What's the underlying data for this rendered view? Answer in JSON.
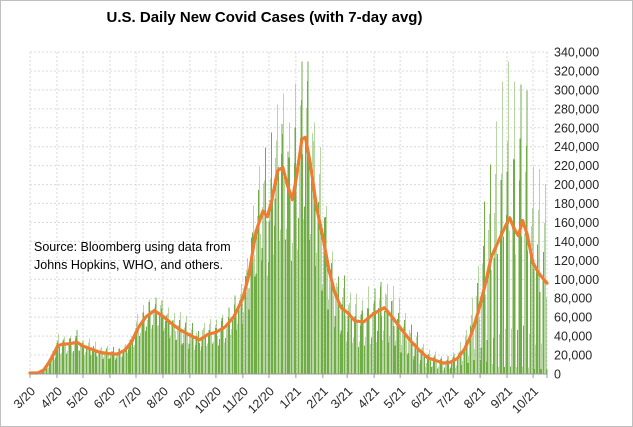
{
  "title": "U.S. Daily New Covid Cases (with 7-day avg)",
  "annotation": {
    "line1": "Source:  Bloomberg using data from",
    "line2": "Johns Hopkins, WHO, and others."
  },
  "chart_data": {
    "type": "bar",
    "subtype": "daily bars with 7-day moving-average line overlay",
    "title": "U.S. Daily New Covid Cases (with 7-day avg)",
    "xlabel": "",
    "ylabel": "",
    "x_axis": {
      "start_date": "2020-03-01",
      "end_date": "2021-10-17",
      "tick_labels": [
        "3/20",
        "4/20",
        "5/20",
        "6/20",
        "7/20",
        "8/20",
        "9/20",
        "10/20",
        "11/20",
        "12/20",
        "1/21",
        "2/21",
        "3/21",
        "4/21",
        "5/21",
        "6/21",
        "7/21",
        "8/21",
        "9/21",
        "10/21"
      ],
      "tick_interval": "month",
      "label_rotation_deg": -45
    },
    "y_axis": {
      "min": 0,
      "max": 340000,
      "step": 20000,
      "side": "right",
      "tick_labels": [
        "0",
        "20,000",
        "40,000",
        "60,000",
        "80,000",
        "100,000",
        "120,000",
        "140,000",
        "160,000",
        "180,000",
        "200,000",
        "220,000",
        "240,000",
        "260,000",
        "280,000",
        "300,000",
        "320,000",
        "340,000"
      ]
    },
    "grid": {
      "visible": true,
      "style": "dashed",
      "color": "#d9d9d9"
    },
    "legend": "none",
    "series": [
      {
        "name": "Daily new cases",
        "type": "bar",
        "color": "#70AD47"
      },
      {
        "name": "7-day average",
        "type": "line",
        "color": "#ED7D31",
        "width": 3.2
      }
    ],
    "avg_anchors": [
      [
        "2020-03-01",
        100
      ],
      [
        "2020-03-10",
        900
      ],
      [
        "2020-03-17",
        4500
      ],
      [
        "2020-03-22",
        11000
      ],
      [
        "2020-03-27",
        19000
      ],
      [
        "2020-04-02",
        30000
      ],
      [
        "2020-04-08",
        31500
      ],
      [
        "2020-04-16",
        32000
      ],
      [
        "2020-04-24",
        33500
      ],
      [
        "2020-05-01",
        29500
      ],
      [
        "2020-05-10",
        26500
      ],
      [
        "2020-05-20",
        23000
      ],
      [
        "2020-05-30",
        21500
      ],
      [
        "2020-06-09",
        21000
      ],
      [
        "2020-06-18",
        25000
      ],
      [
        "2020-06-26",
        34000
      ],
      [
        "2020-07-03",
        48000
      ],
      [
        "2020-07-12",
        60000
      ],
      [
        "2020-07-22",
        67000
      ],
      [
        "2020-08-01",
        61000
      ],
      [
        "2020-08-10",
        54000
      ],
      [
        "2020-08-20",
        47000
      ],
      [
        "2020-09-01",
        41000
      ],
      [
        "2020-09-12",
        36000
      ],
      [
        "2020-09-22",
        42000
      ],
      [
        "2020-10-01",
        44000
      ],
      [
        "2020-10-12",
        50000
      ],
      [
        "2020-10-22",
        61000
      ],
      [
        "2020-11-01",
        80000
      ],
      [
        "2020-11-08",
        105000
      ],
      [
        "2020-11-16",
        150000
      ],
      [
        "2020-11-24",
        172000
      ],
      [
        "2020-11-29",
        166000
      ],
      [
        "2020-12-04",
        182000
      ],
      [
        "2020-12-11",
        215000
      ],
      [
        "2020-12-17",
        218000
      ],
      [
        "2020-12-22",
        200000
      ],
      [
        "2020-12-28",
        184000
      ],
      [
        "2021-01-02",
        210000
      ],
      [
        "2021-01-08",
        248000
      ],
      [
        "2021-01-12",
        250000
      ],
      [
        "2021-01-18",
        220000
      ],
      [
        "2021-01-25",
        175000
      ],
      [
        "2021-02-01",
        145000
      ],
      [
        "2021-02-08",
        110000
      ],
      [
        "2021-02-15",
        85000
      ],
      [
        "2021-02-22",
        70000
      ],
      [
        "2021-03-01",
        65000
      ],
      [
        "2021-03-10",
        56000
      ],
      [
        "2021-03-20",
        55000
      ],
      [
        "2021-04-01",
        64000
      ],
      [
        "2021-04-13",
        70000
      ],
      [
        "2021-04-22",
        60000
      ],
      [
        "2021-05-01",
        49000
      ],
      [
        "2021-05-12",
        36000
      ],
      [
        "2021-05-22",
        26000
      ],
      [
        "2021-06-01",
        17500
      ],
      [
        "2021-06-10",
        14500
      ],
      [
        "2021-06-20",
        11500
      ],
      [
        "2021-06-28",
        12500
      ],
      [
        "2021-07-06",
        16500
      ],
      [
        "2021-07-14",
        26000
      ],
      [
        "2021-07-22",
        42000
      ],
      [
        "2021-07-30",
        66000
      ],
      [
        "2021-08-07",
        95000
      ],
      [
        "2021-08-14",
        124000
      ],
      [
        "2021-08-22",
        140000
      ],
      [
        "2021-08-28",
        152000
      ],
      [
        "2021-09-04",
        165000
      ],
      [
        "2021-09-10",
        152000
      ],
      [
        "2021-09-14",
        146000
      ],
      [
        "2021-09-19",
        162000
      ],
      [
        "2021-09-24",
        148000
      ],
      [
        "2021-10-01",
        117000
      ],
      [
        "2021-10-08",
        106000
      ],
      [
        "2021-10-14",
        99000
      ],
      [
        "2021-10-17",
        96000
      ]
    ],
    "bar_weekly_spike_amplitude_anchors": [
      [
        "2020-03-01",
        0.4
      ],
      [
        "2020-04-15",
        0.3
      ],
      [
        "2020-06-01",
        0.28
      ],
      [
        "2020-07-15",
        0.22
      ],
      [
        "2020-09-01",
        0.35
      ],
      [
        "2020-10-15",
        0.3
      ],
      [
        "2020-12-01",
        0.36
      ],
      [
        "2021-01-10",
        0.4
      ],
      [
        "2021-02-15",
        0.45
      ],
      [
        "2021-04-01",
        0.5
      ],
      [
        "2021-05-15",
        0.55
      ],
      [
        "2021-06-15",
        0.6
      ],
      [
        "2021-07-15",
        0.65
      ],
      [
        "2021-08-05",
        0.9
      ],
      [
        "2021-08-20",
        1.0
      ],
      [
        "2021-10-17",
        1.0
      ]
    ],
    "weekly_pattern_sun_to_sat": [
      -0.95,
      -0.7,
      0.0,
      0.35,
      0.55,
      1.0,
      -0.1
    ],
    "bar_noise_fraction": 0.16,
    "bar_value_clamp_max": 330000,
    "peak_notes": {
      "apr_2020_plateau_avg": 32000,
      "jul_2020_peak_avg": 67000,
      "dec_2020_peak_avg": 218000,
      "jan_2021_peak_avg": 250000,
      "jun_2021_min_avg": 11500,
      "sep_2021_peak_avg": 165000,
      "tallest_daily_bar": 322000,
      "final_avg_value": 96000
    },
    "colors": {
      "bars": "#70AD47",
      "avg_line": "#ED7D31",
      "gridline": "#d9d9d9",
      "axis_line": "#999999",
      "label_text": "#262626",
      "background": "#ffffff"
    }
  }
}
